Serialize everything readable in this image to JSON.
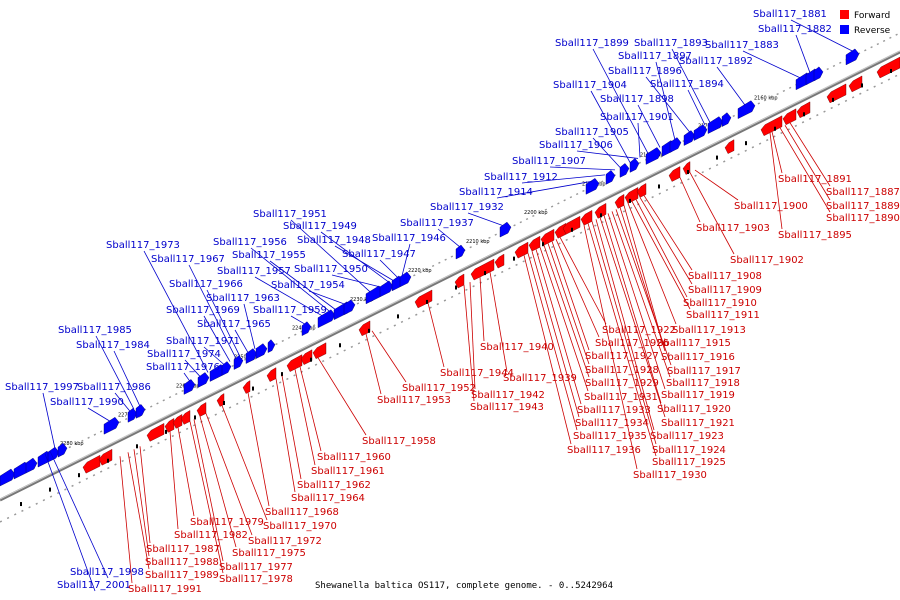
{
  "caption": "Shewanella baltica OS117, complete genome. - 0..5242964",
  "legend": {
    "forward_label": "Forward",
    "reverse_label": "Reverse",
    "forward_color": "#ff0000",
    "reverse_color": "#0000ff"
  },
  "colors": {
    "forward_gene": "#ff0000",
    "reverse_gene": "#0000ff",
    "forward_label": "#cc0000",
    "reverse_label": "#0000cc",
    "backbone": "#999999"
  },
  "kbp_ticks": [
    "2160 kbp",
    "2170 kbp",
    "2180 kbp",
    "2190 kbp",
    "2200 kbp",
    "2210 kbp",
    "2220 kbp",
    "2230 kbp",
    "2240 kbp",
    "2250 kbp",
    "2260 kbp",
    "2270 kbp",
    "2280 kbp"
  ],
  "reverse_genes": [
    "Sball117_1881",
    "Sball117_1882",
    "Sball117_1883",
    "Sball117_1892",
    "Sball117_1893",
    "Sball117_1894",
    "Sball117_1896",
    "Sball117_1897",
    "Sball117_1898",
    "Sball117_1899",
    "Sball117_1901",
    "Sball117_1904",
    "Sball117_1905",
    "Sball117_1906",
    "Sball117_1907",
    "Sball117_1912",
    "Sball117_1914",
    "Sball117_1932",
    "Sball117_1937",
    "Sball117_1946",
    "Sball117_1947",
    "Sball117_1948",
    "Sball117_1949",
    "Sball117_1950",
    "Sball117_1951",
    "Sball117_1954",
    "Sball117_1955",
    "Sball117_1956",
    "Sball117_1957",
    "Sball117_1959",
    "Sball117_1963",
    "Sball117_1965",
    "Sball117_1966",
    "Sball117_1967",
    "Sball117_1969",
    "Sball117_1971",
    "Sball117_1973",
    "Sball117_1974",
    "Sball117_1976",
    "Sball117_1984",
    "Sball117_1985",
    "Sball117_1986",
    "Sball117_1990",
    "Sball117_1997",
    "Sball117_1998",
    "Sball117_2001"
  ],
  "forward_genes": [
    "Sball117_1887",
    "Sball117_1889",
    "Sball117_1890",
    "Sball117_1891",
    "Sball117_1895",
    "Sball117_1900",
    "Sball117_1902",
    "Sball117_1903",
    "Sball117_1908",
    "Sball117_1909",
    "Sball117_1910",
    "Sball117_1911",
    "Sball117_1913",
    "Sball117_1915",
    "Sball117_1916",
    "Sball117_1917",
    "Sball117_1918",
    "Sball117_1919",
    "Sball117_1920",
    "Sball117_1921",
    "Sball117_1922",
    "Sball117_1923",
    "Sball117_1924",
    "Sball117_1925",
    "Sball117_1926",
    "Sball117_1927",
    "Sball117_1928",
    "Sball117_1929",
    "Sball117_1930",
    "Sball117_1931",
    "Sball117_1933",
    "Sball117_1934",
    "Sball117_1935",
    "Sball117_1936",
    "Sball117_1939",
    "Sball117_1940",
    "Sball117_1942",
    "Sball117_1943",
    "Sball117_1944",
    "Sball117_1952",
    "Sball117_1953",
    "Sball117_1958",
    "Sball117_1960",
    "Sball117_1961",
    "Sball117_1962",
    "Sball117_1964",
    "Sball117_1968",
    "Sball117_1970",
    "Sball117_1972",
    "Sball117_1975",
    "Sball117_1977",
    "Sball117_1978",
    "Sball117_1979",
    "Sball117_1982",
    "Sball117_1987",
    "Sball117_1988",
    "Sball117_1989",
    "Sball117_1991"
  ]
}
